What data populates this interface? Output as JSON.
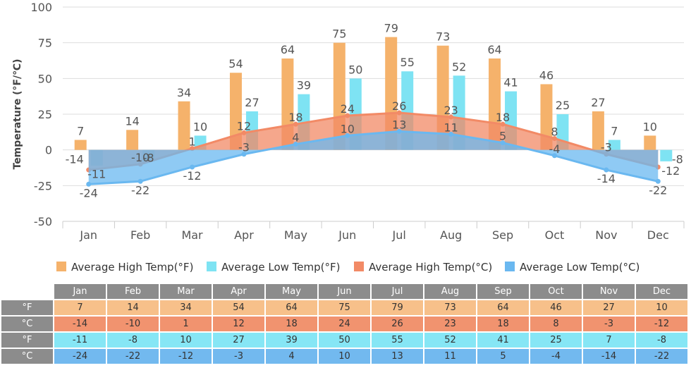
{
  "chart_data": {
    "type": "bar",
    "categories": [
      "Jan",
      "Feb",
      "Mar",
      "Apr",
      "May",
      "Jun",
      "Jul",
      "Aug",
      "Sep",
      "Oct",
      "Nov",
      "Dec"
    ],
    "ylabel": "Temperature (°F/℃)",
    "ylim": [
      -50,
      100
    ],
    "yticks": [
      -50,
      -25,
      0,
      25,
      50,
      75,
      100
    ],
    "grid": true,
    "legend_position": "bottom",
    "series": [
      {
        "name": "Average High Temp(°F)",
        "kind": "bar",
        "color": "#f5b26b",
        "values": [
          7,
          14,
          34,
          54,
          64,
          75,
          79,
          73,
          64,
          46,
          27,
          10
        ]
      },
      {
        "name": "Average Low Temp(°F)",
        "kind": "bar",
        "color": "#7ee3f3",
        "values": [
          -11,
          -8,
          10,
          27,
          39,
          50,
          55,
          52,
          41,
          25,
          7,
          -8
        ]
      },
      {
        "name": "Average High Temp(°C)",
        "kind": "area",
        "color": "#f28a66",
        "values": [
          -14,
          -10,
          1,
          12,
          18,
          24,
          26,
          23,
          18,
          8,
          -3,
          -12
        ]
      },
      {
        "name": "Average Low Temp(°C)",
        "kind": "area",
        "color": "#6ab8f0",
        "values": [
          -24,
          -22,
          -12,
          -3,
          4,
          10,
          13,
          11,
          5,
          -4,
          -14,
          -22
        ]
      }
    ]
  },
  "table": {
    "months": [
      "Jan",
      "Feb",
      "Mar",
      "Apr",
      "May",
      "Jun",
      "Jul",
      "Aug",
      "Sep",
      "Oct",
      "Nov",
      "Dec"
    ],
    "rows": [
      {
        "label": "°F",
        "color": "#f7c08a",
        "values": [
          "7",
          "14",
          "34",
          "54",
          "64",
          "75",
          "79",
          "73",
          "64",
          "46",
          "27",
          "10"
        ]
      },
      {
        "label": "°C",
        "color": "#f1936f",
        "values": [
          "-14",
          "-10",
          "1",
          "12",
          "18",
          "24",
          "26",
          "23",
          "18",
          "8",
          "-3",
          "-12"
        ]
      },
      {
        "label": "°F",
        "color": "#86e6f5",
        "values": [
          "-11",
          "-8",
          "10",
          "27",
          "39",
          "50",
          "55",
          "52",
          "41",
          "25",
          "7",
          "-8"
        ]
      },
      {
        "label": "°C",
        "color": "#72b9ef",
        "values": [
          "-24",
          "-22",
          "-12",
          "-3",
          "4",
          "10",
          "13",
          "11",
          "5",
          "-4",
          "-14",
          "-22"
        ]
      }
    ]
  }
}
